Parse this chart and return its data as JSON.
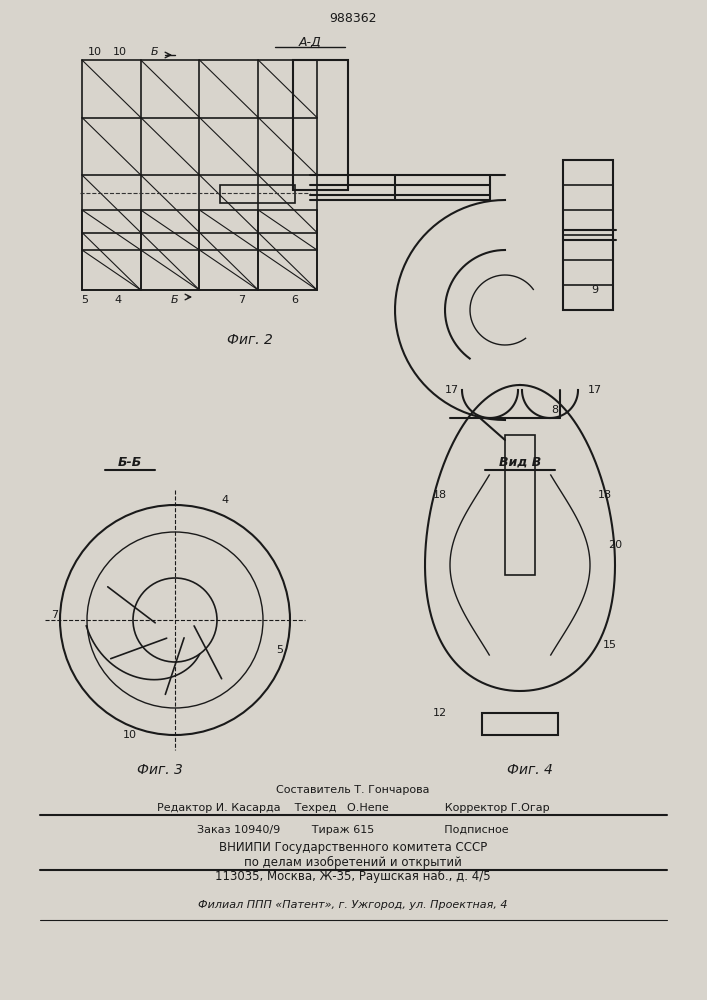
{
  "patent_number": "988362",
  "bg_color": "#d8d4cc",
  "line_color": "#1a1a1a",
  "fig2_caption": "Фиг. 2",
  "fig3_caption": "Фиг. 3",
  "fig4_caption": "Фиг. 4",
  "label_AA": "A-Д",
  "label_BB_title": "Б-Б",
  "label_VidV": "Вид В",
  "footer_line1": "Составитель Т. Гончарова",
  "footer_line2": "Редактор И. Касарда    Техред   О.Непе                Корректор Г.Огар",
  "footer_line3": "Заказ 10940/9         Тираж 615                    Подписное",
  "footer_line4": "ВНИИПИ Государственного комитета СССР",
  "footer_line5": "по делам изобретений и открытий",
  "footer_line6": "113035, Москва, Ж-35, Раушская наб., д. 4/5",
  "footer_line7": "Филиал ППП «Патент», г. Ужгород, ул. Проектная, 4"
}
